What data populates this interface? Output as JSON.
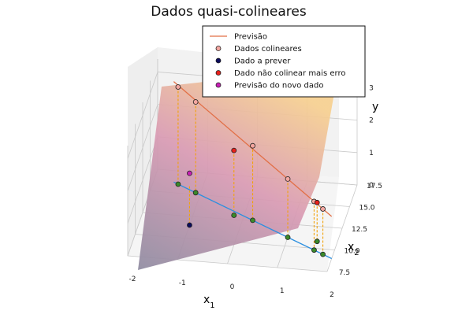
{
  "chart_data": {
    "type": "scatter",
    "title": "Dados quasi-colineares",
    "axes": {
      "x": {
        "label_base": "x",
        "label_sub": "1",
        "ticks": [
          "-2",
          "-1",
          "0",
          "1",
          "2"
        ]
      },
      "y": {
        "label_base": "x",
        "label_sub": "2",
        "ticks": [
          "7.5",
          "10.0",
          "12.5",
          "15.0",
          "17.5"
        ]
      },
      "z": {
        "label": "y",
        "ticks": [
          "0",
          "1",
          "2",
          "3"
        ]
      }
    },
    "legend": {
      "placement": "top-right",
      "entries": [
        {
          "label": "Previsão",
          "kind": "line",
          "color": "#e26f46"
        },
        {
          "label": "Dados colineares",
          "kind": "marker",
          "color": "#f4a6a0"
        },
        {
          "label": "Dado a prever",
          "kind": "marker",
          "color": "#0b0b5c"
        },
        {
          "label": "Dado não colinear mais erro",
          "kind": "marker",
          "color": "#e8201a"
        },
        {
          "label": "Previsão do novo dado",
          "kind": "marker",
          "color": "#c71fb5"
        }
      ]
    },
    "colors": {
      "prediction_line": "#e26f46",
      "base_line": "#2b8fe0",
      "projection_dashes": "#f2a20a",
      "surface_low": "#8e8aa0",
      "surface_mid": "#d99ab3",
      "surface_high": "#f7d090",
      "base_marker": "#3a8a2a"
    },
    "collinear_points": [
      {
        "x1": -1.5,
        "x2": 16.0,
        "y": 3.0
      },
      {
        "x1": -1.1,
        "x2": 15.2,
        "y": 2.8
      },
      {
        "x1": 0.2,
        "x2": 12.6,
        "y": 2.3
      },
      {
        "x1": 1.0,
        "x2": 11.0,
        "y": 1.8
      },
      {
        "x1": 1.6,
        "x2": 9.8,
        "y": 1.5
      },
      {
        "x1": 1.8,
        "x2": 9.4,
        "y": 1.4
      }
    ],
    "noncollinear_points": [
      {
        "x1": -0.2,
        "x2": 13.0,
        "y": 2.0
      },
      {
        "x1": 1.6,
        "x2": 10.8,
        "y": 1.2
      }
    ],
    "predict_point": {
      "x1": -1.0,
      "x2": 11.5,
      "y": 1.2
    },
    "prediction_point": {
      "x1": -1.0,
      "x2": 11.5,
      "y": 1.6
    },
    "prediction_line": {
      "from": {
        "x1": -1.6,
        "x2": 16.2,
        "y": 3.1
      },
      "to": {
        "x1": 2.0,
        "x2": 9.0,
        "y": 1.3
      }
    }
  }
}
